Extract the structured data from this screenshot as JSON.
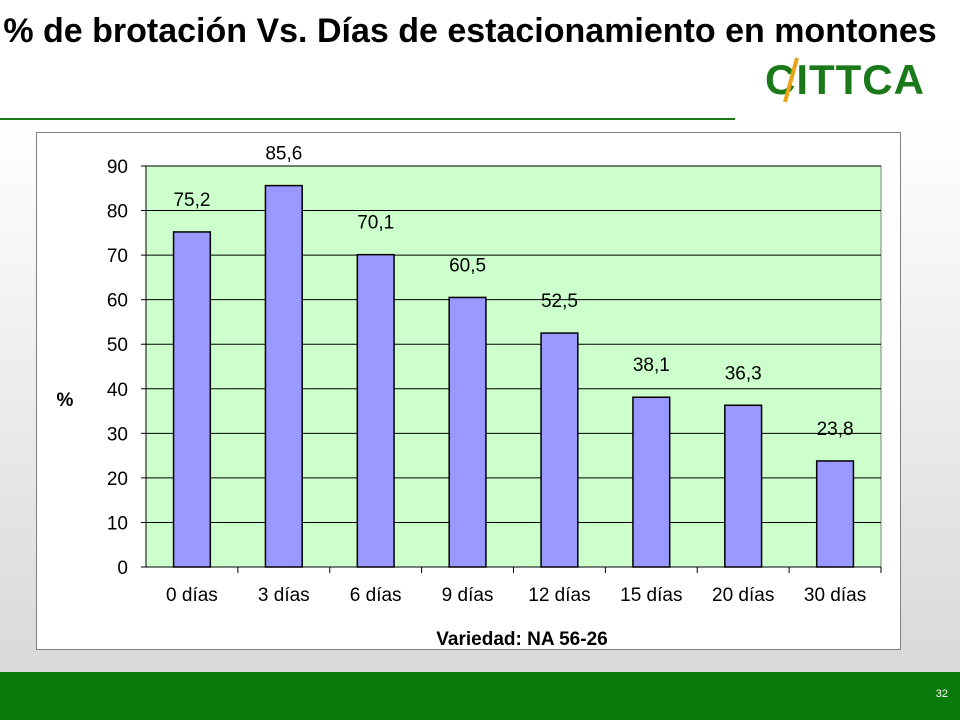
{
  "title": "% de brotación  Vs. Días de estacionamiento en montones",
  "logo_text": "CITTCA",
  "page_number": "32",
  "colors": {
    "brand_green": "#1a7a1a",
    "footer_green": "#0a7a0a",
    "plot_bg": "#ccffcc",
    "bar_fill": "#9999ff"
  },
  "chart_data": {
    "type": "bar",
    "categories": [
      "0 días",
      "3 días",
      "6 días",
      "9 días",
      "12 días",
      "15 días",
      "20 días",
      "30 días"
    ],
    "values": [
      75.2,
      85.6,
      70.1,
      60.5,
      52.5,
      38.1,
      36.3,
      23.8
    ],
    "value_labels": [
      "75,2",
      "85,6",
      "70,1",
      "60,5",
      "52,5",
      "38,1",
      "36,3",
      "23,8"
    ],
    "ylabel": "%",
    "xlabel": "Variedad: NA 56-26",
    "ylim": [
      0,
      90
    ],
    "yticks": [
      0,
      10,
      20,
      30,
      40,
      50,
      60,
      70,
      80,
      90
    ],
    "grid": true,
    "legend": "none"
  }
}
